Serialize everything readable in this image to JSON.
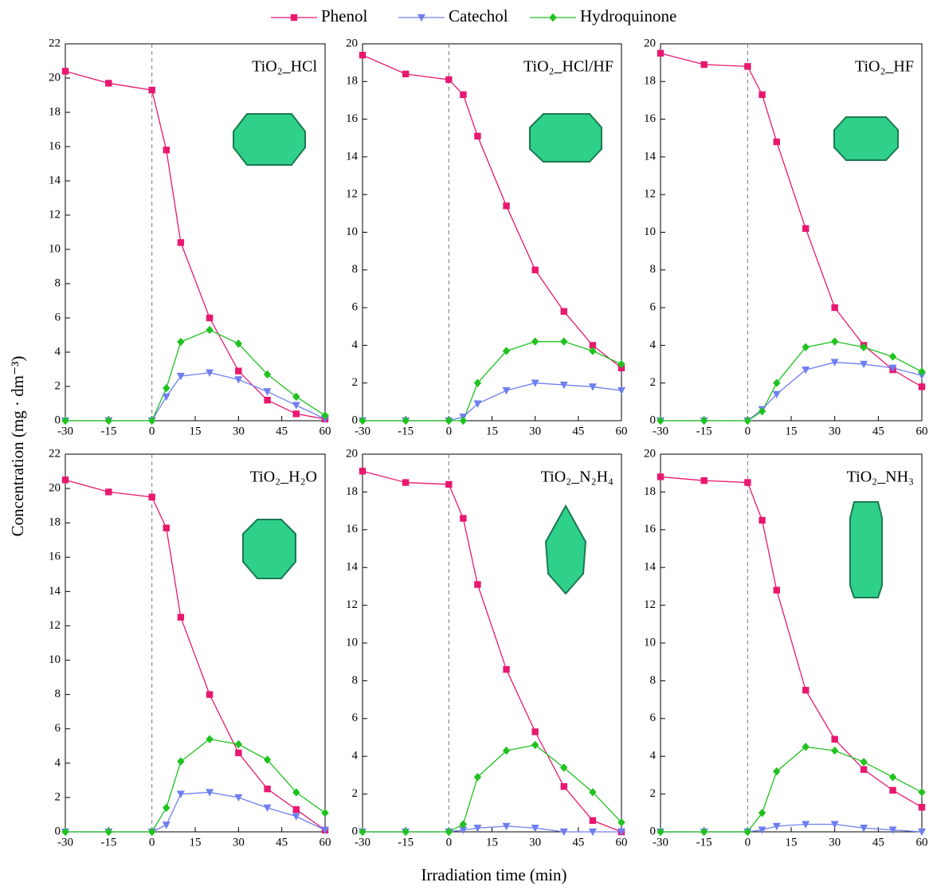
{
  "xlabel": "Irradiation time (min)",
  "ylabel": "Concentration (mg · dm⁻³)",
  "chart_data": [
    {
      "type": "line",
      "title": "TiO₂_HCl",
      "x": [
        -30,
        -15,
        0,
        5,
        10,
        20,
        30,
        40,
        50,
        60
      ],
      "xlim": [
        -30,
        60
      ],
      "xticks": [
        -30,
        -15,
        0,
        15,
        30,
        45,
        60
      ],
      "ylim": [
        0,
        22
      ],
      "yticks": [
        0,
        2,
        4,
        6,
        8,
        10,
        12,
        14,
        16,
        18,
        20,
        22
      ],
      "series": [
        {
          "name": "Phenol",
          "color": "#e8186f",
          "values": [
            20.4,
            19.7,
            19.3,
            15.8,
            10.4,
            6.0,
            2.9,
            1.2,
            0.4,
            0.1
          ]
        },
        {
          "name": "Catechol",
          "color": "#6f7ff0",
          "values": [
            0,
            0,
            0,
            1.4,
            2.6,
            2.8,
            2.4,
            1.7,
            0.9,
            0.1
          ]
        },
        {
          "name": "Hydroquinone",
          "color": "#1fc21f",
          "values": [
            0,
            0,
            0,
            1.9,
            4.6,
            5.3,
            4.5,
            2.7,
            1.4,
            0.3
          ]
        }
      ]
    },
    {
      "type": "line",
      "title": "TiO₂_HCl/HF",
      "x": [
        -30,
        -15,
        0,
        5,
        10,
        20,
        30,
        40,
        50,
        60
      ],
      "xlim": [
        -30,
        60
      ],
      "xticks": [
        -30,
        -15,
        0,
        15,
        30,
        45,
        60
      ],
      "ylim": [
        0,
        20
      ],
      "yticks": [
        0,
        2,
        4,
        6,
        8,
        10,
        12,
        14,
        16,
        18,
        20
      ],
      "series": [
        {
          "name": "Phenol",
          "color": "#e8186f",
          "values": [
            19.4,
            18.4,
            18.1,
            17.3,
            15.1,
            11.4,
            8.0,
            5.8,
            4.0,
            2.8
          ]
        },
        {
          "name": "Catechol",
          "color": "#6f7ff0",
          "values": [
            0,
            0,
            0,
            0.2,
            0.9,
            1.6,
            2.0,
            1.9,
            1.8,
            1.6
          ]
        },
        {
          "name": "Hydroquinone",
          "color": "#1fc21f",
          "values": [
            0,
            0,
            0,
            0,
            2.0,
            3.7,
            4.2,
            4.2,
            3.7,
            3.0
          ]
        }
      ]
    },
    {
      "type": "line",
      "title": "TiO₂_HF",
      "x": [
        -30,
        -15,
        0,
        5,
        10,
        20,
        30,
        40,
        50,
        60
      ],
      "xlim": [
        -30,
        60
      ],
      "xticks": [
        -30,
        -15,
        0,
        15,
        30,
        45,
        60
      ],
      "ylim": [
        0,
        20
      ],
      "yticks": [
        0,
        2,
        4,
        6,
        8,
        10,
        12,
        14,
        16,
        18,
        20
      ],
      "series": [
        {
          "name": "Phenol",
          "color": "#e8186f",
          "values": [
            19.5,
            18.9,
            18.8,
            17.3,
            14.8,
            10.2,
            6.0,
            4.0,
            2.7,
            1.8
          ]
        },
        {
          "name": "Catechol",
          "color": "#6f7ff0",
          "values": [
            0,
            0,
            0,
            0.6,
            1.4,
            2.7,
            3.1,
            3.0,
            2.8,
            2.4
          ]
        },
        {
          "name": "Hydroquinone",
          "color": "#1fc21f",
          "values": [
            0,
            0,
            0,
            0.5,
            2.0,
            3.9,
            4.2,
            3.9,
            3.4,
            2.6
          ]
        }
      ]
    },
    {
      "type": "line",
      "title": "TiO₂_H₂O",
      "x": [
        -30,
        -15,
        0,
        5,
        10,
        20,
        30,
        40,
        50,
        60
      ],
      "xlim": [
        -30,
        60
      ],
      "xticks": [
        -30,
        -15,
        0,
        15,
        30,
        45,
        60
      ],
      "ylim": [
        0,
        22
      ],
      "yticks": [
        0,
        2,
        4,
        6,
        8,
        10,
        12,
        14,
        16,
        18,
        20,
        22
      ],
      "series": [
        {
          "name": "Phenol",
          "color": "#e8186f",
          "values": [
            20.5,
            19.8,
            19.5,
            17.7,
            12.5,
            8.0,
            4.6,
            2.5,
            1.3,
            0.1
          ]
        },
        {
          "name": "Catechol",
          "color": "#6f7ff0",
          "values": [
            0,
            0,
            0,
            0.4,
            2.2,
            2.3,
            2.0,
            1.4,
            0.9,
            0.1
          ]
        },
        {
          "name": "Hydroquinone",
          "color": "#1fc21f",
          "values": [
            0,
            0,
            0,
            1.4,
            4.1,
            5.4,
            5.1,
            4.2,
            2.3,
            1.1
          ]
        }
      ]
    },
    {
      "type": "line",
      "title": "TiO₂_N₂H₄",
      "x": [
        -30,
        -15,
        0,
        5,
        10,
        20,
        30,
        40,
        50,
        60
      ],
      "xlim": [
        -30,
        60
      ],
      "xticks": [
        -30,
        -15,
        0,
        15,
        30,
        45,
        60
      ],
      "ylim": [
        0,
        20
      ],
      "yticks": [
        0,
        2,
        4,
        6,
        8,
        10,
        12,
        14,
        16,
        18,
        20
      ],
      "series": [
        {
          "name": "Phenol",
          "color": "#e8186f",
          "values": [
            19.1,
            18.5,
            18.4,
            16.6,
            13.1,
            8.6,
            5.3,
            2.4,
            0.6,
            0.0
          ]
        },
        {
          "name": "Catechol",
          "color": "#6f7ff0",
          "values": [
            0,
            0,
            0,
            0.1,
            0.2,
            0.3,
            0.2,
            0.0,
            0.0,
            0.0
          ]
        },
        {
          "name": "Hydroquinone",
          "color": "#1fc21f",
          "values": [
            0,
            0,
            0,
            0.4,
            2.9,
            4.3,
            4.6,
            3.4,
            2.1,
            0.5
          ]
        }
      ]
    },
    {
      "type": "line",
      "title": "TiO₂_NH₃",
      "x": [
        -30,
        -15,
        0,
        5,
        10,
        20,
        30,
        40,
        50,
        60
      ],
      "xlim": [
        -30,
        60
      ],
      "xticks": [
        -30,
        -15,
        0,
        15,
        30,
        45,
        60
      ],
      "ylim": [
        0,
        20
      ],
      "yticks": [
        0,
        2,
        4,
        6,
        8,
        10,
        12,
        14,
        16,
        18,
        20
      ],
      "series": [
        {
          "name": "Phenol",
          "color": "#e8186f",
          "values": [
            18.8,
            18.6,
            18.5,
            16.5,
            12.8,
            7.5,
            4.9,
            3.3,
            2.2,
            1.3
          ]
        },
        {
          "name": "Catechol",
          "color": "#6f7ff0",
          "values": [
            0,
            0,
            0,
            0.1,
            0.3,
            0.4,
            0.4,
            0.2,
            0.1,
            0.0
          ]
        },
        {
          "name": "Hydroquinone",
          "color": "#1fc21f",
          "values": [
            0,
            0,
            0,
            1.0,
            3.2,
            4.5,
            4.3,
            3.7,
            2.9,
            2.1
          ]
        }
      ]
    }
  ]
}
